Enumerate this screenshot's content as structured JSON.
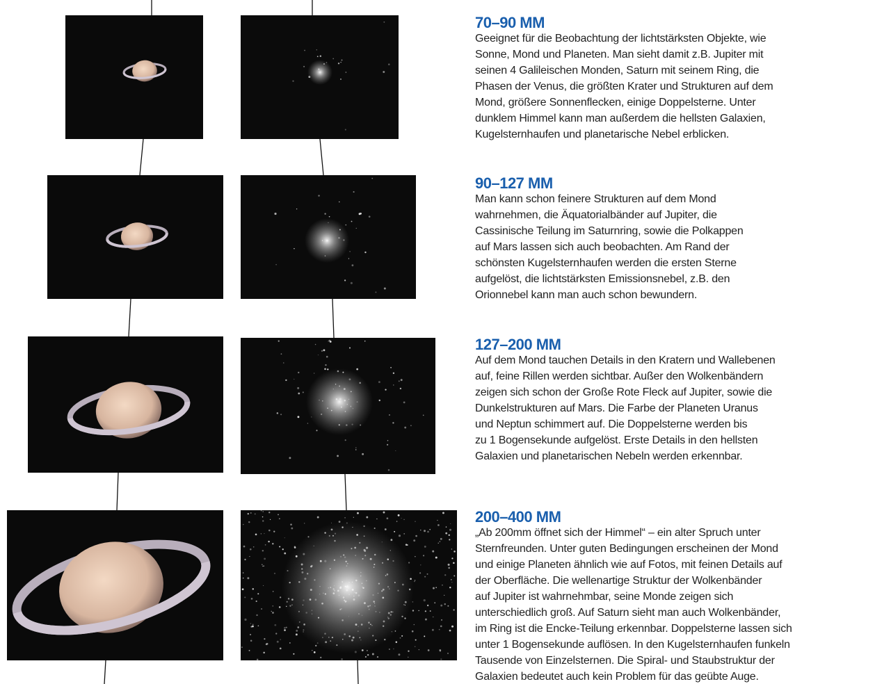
{
  "sections": [
    {
      "heading": "70–90 MM",
      "lines": [
        "Geeignet für die Beobachtung der lichtstärksten Objekte, wie",
        "Sonne, Mond und Planeten. Man sieht damit z.B. Jupiter mit",
        "seinen 4 Galileischen Monden, Saturn mit seinem Ring, die",
        "Phasen der Venus, die größten Krater und Strukturen auf dem",
        "Mond, größere Sonnenflecken, einige Doppelsterne. Unter",
        "dunklem Himmel kann man außerdem die hellsten Galaxien,",
        "Kugelsternhaufen und planetarische Nebel erblicken."
      ]
    },
    {
      "heading": "90–127 MM",
      "lines": [
        "Man kann schon feinere Strukturen auf dem Mond",
        "wahrnehmen, die Äquatorialbänder auf Jupiter, die",
        "Cassinische Teilung im Saturnring, sowie die Polkappen",
        "auf Mars lassen sich auch beobachten. Am Rand der",
        "schönsten Kugelsternhaufen werden die ersten Sterne",
        "aufgelöst, die lichtstärksten Emissionsnebel, z.B. den",
        "Orionnebel kann man auch schon bewundern."
      ]
    },
    {
      "heading": "127–200 MM",
      "lines": [
        "Auf dem Mond tauchen Details in den Kratern und Wallebenen",
        "auf, feine Rillen werden sichtbar. Außer den Wolkenbändern",
        "zeigen sich schon der Große Rote Fleck auf Jupiter, sowie die",
        "Dunkelstrukturen auf Mars. Die Farbe der Planeten Uranus",
        "und Neptun schimmert auf. Die Doppelsterne werden bis",
        "zu 1 Bogensekunde aufgelöst. Erste Details in den hellsten",
        "Galaxien und planetarischen Nebeln werden erkennbar."
      ]
    },
    {
      "heading": "200–400 MM",
      "lines": [
        "„Ab 200mm öffnet sich der Himmel“ – ein alter Spruch unter",
        "Sternfreunden. Unter guten Bedingungen erscheinen der Mond",
        "und einige Planeten ähnlich wie auf Fotos, mit feinen Details auf",
        "der Oberfläche. Die wellenartige Struktur der Wolkenbänder",
        "auf Jupiter ist wahrnehmbar, seine Monde zeigen sich",
        "unterschiedlich groß. Auf Saturn sieht man auch Wolkenbänder,",
        "im Ring ist die Encke-Teilung erkennbar. Doppelsterne lassen sich",
        "unter 1 Bogensekunde auflösen. In den Kugelsternhaufen funkeln",
        "Tausende von Einzelsternen. Die Spiral- und Staubstruktur der",
        "Galaxien bedeutet auch kein Problem für das geübte Auge."
      ]
    }
  ]
}
